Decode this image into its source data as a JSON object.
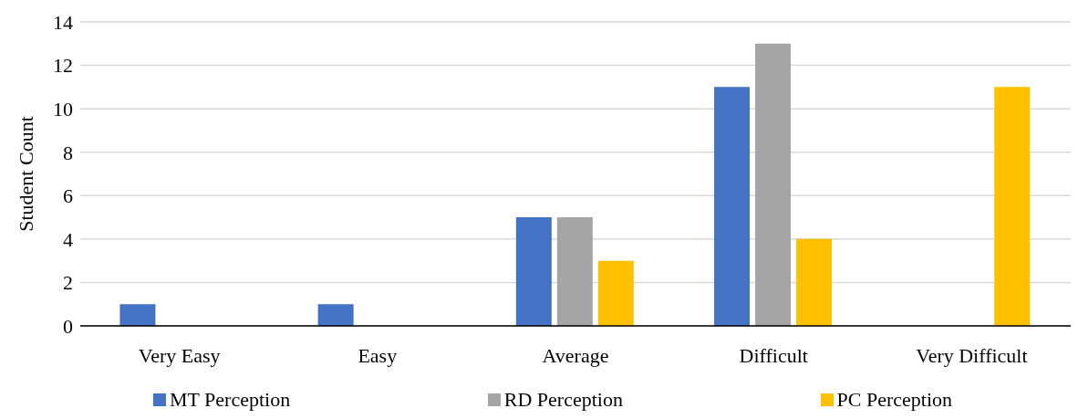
{
  "chart_data": {
    "type": "bar",
    "ylabel": "Student Count",
    "categories": [
      "Very Easy",
      "Easy",
      "Average",
      "Difficult",
      "Very Difficult"
    ],
    "series": [
      {
        "name": "MT Perception",
        "color": "#4472c4",
        "values": [
          1,
          1,
          5,
          11,
          0
        ]
      },
      {
        "name": "RD Perception",
        "color": "#a5a5a5",
        "values": [
          0,
          0,
          5,
          13,
          0
        ]
      },
      {
        "name": "PC Perception",
        "color": "#ffc000",
        "values": [
          0,
          0,
          3,
          4,
          11
        ]
      }
    ],
    "ylim": [
      0,
      14
    ],
    "yticks": [
      0,
      2,
      4,
      6,
      8,
      10,
      12,
      14
    ],
    "grid": "y",
    "legend": "bottom"
  }
}
